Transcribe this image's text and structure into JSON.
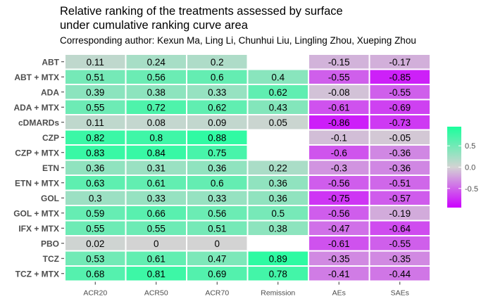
{
  "chart_data": {
    "type": "heatmap",
    "title": "Relative ranking of the treatments assessed by surface\nunder cumulative ranking curve area",
    "subtitle": "Corresponding author: Kexun Ma, Ling Li, Chunhui Liu, Lingling Zhou, Xueping Zhou",
    "x_categories": [
      "ACR20",
      "ACR50",
      "ACR70",
      "Remission",
      "AEs",
      "SAEs"
    ],
    "y_categories": [
      "ABT",
      "ABT + MTX",
      "ADA",
      "ADA + MTX",
      "cDMARDs",
      "CZP",
      "CZP + MTX",
      "ETN",
      "ETN + MTX",
      "GOL",
      "GOL + MTX",
      "IFX + MTX",
      "PBO",
      "TCZ",
      "TCZ + MTX"
    ],
    "values": [
      [
        0.11,
        0.24,
        0.2,
        null,
        -0.15,
        -0.17
      ],
      [
        0.51,
        0.56,
        0.6,
        0.4,
        -0.55,
        -0.85
      ],
      [
        0.39,
        0.38,
        0.33,
        0.62,
        -0.08,
        -0.55
      ],
      [
        0.55,
        0.72,
        0.62,
        0.43,
        -0.61,
        -0.69
      ],
      [
        0.11,
        0.08,
        0.09,
        0.05,
        -0.86,
        -0.73
      ],
      [
        0.82,
        0.8,
        0.88,
        null,
        -0.1,
        -0.05
      ],
      [
        0.83,
        0.84,
        0.75,
        null,
        -0.6,
        -0.36
      ],
      [
        0.36,
        0.31,
        0.36,
        0.22,
        -0.3,
        -0.36
      ],
      [
        0.63,
        0.61,
        0.6,
        0.36,
        -0.56,
        -0.51
      ],
      [
        0.3,
        0.33,
        0.33,
        0.36,
        -0.75,
        -0.57
      ],
      [
        0.59,
        0.66,
        0.56,
        0.5,
        -0.56,
        -0.19
      ],
      [
        0.55,
        0.55,
        0.51,
        0.38,
        -0.47,
        -0.64
      ],
      [
        0.02,
        0,
        0,
        null,
        -0.61,
        -0.55
      ],
      [
        0.53,
        0.61,
        0.47,
        0.89,
        -0.35,
        -0.35
      ],
      [
        0.68,
        0.81,
        0.69,
        0.78,
        -0.41,
        -0.44
      ]
    ],
    "color_scale": {
      "low": "#cc00ff",
      "mid": "#d3d3d3",
      "high": "#1aff9c",
      "domain": [
        -1,
        0,
        1
      ]
    },
    "legend": {
      "position": "right",
      "ticks": [
        "0.5",
        "0.0",
        "-0.5"
      ]
    }
  }
}
